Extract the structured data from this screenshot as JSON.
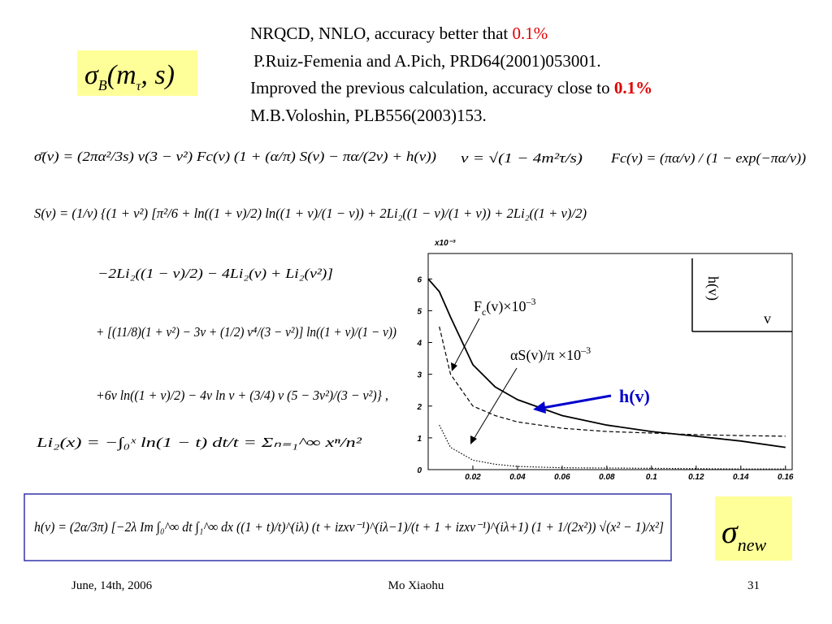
{
  "header": {
    "sigma_box": {
      "symbol": "σ",
      "sub": "B",
      "open": "(m",
      "arg_sub": "τ",
      "close": ", s)"
    },
    "lines": [
      {
        "text": "NRQCD, NNLO, accuracy better that ",
        "highlight": "0.1%"
      },
      {
        "text": "P.Ruiz-Femenia and A.Pich, PRD64(2001)053001."
      },
      {
        "text": "Improved the previous calculation, accuracy close to ",
        "highlight": "0.1%"
      },
      {
        "text": "M.B.Voloshin, PLB556(2003)153."
      }
    ]
  },
  "formulas": [
    "σ̄(v) = (2πα²/3s) v(3 − v²) Fc(v) (1 + (α/π) S(v) − πα/(2v) + h(v))",
    "v = √(1 − 4m²τ/s)",
    "Fc(v) = (πα/v) / (1 − exp(−πα/v))",
    "S(v) = (1/v) {(1 + v²) [π²/6 + ln((1 + v)/2) ln((1 + v)/(1 − v)) + 2Li₂((1 − v)/(1 + v)) + 2Li₂((1 + v)/2)",
    "−2Li₂((1 − v)/2) − 4Li₂(v) + Li₂(v²)]",
    "+ [(11/8)(1 + v²) − 3v + (1/2) v⁴/(3 − v²)] ln((1 + v)/(1 − v))",
    "+6v ln((1 + v)/2) − 4v ln v + (3/4) v (5 − 3v²)/(3 − v²)} ,",
    "Li₂(x) = −∫₀ˣ ln(1 − t) dt/t = Σₙ₌₁^∞ xⁿ/n²",
    "h(v) = (2α/3π) [−2λ Im ∫₀^∞ dt ∫₁^∞ dx ((1 + t)/t)^(iλ) (t + izxv⁻¹)^(iλ−1)/(t + 1 + izxv⁻¹)^(iλ+1) (1 + 1/(2x²)) √(x² − 1)/x²]"
  ],
  "chart_data": {
    "type": "line",
    "y_multiplier": "x10⁻³",
    "x": [
      0,
      0.005,
      0.01,
      0.02,
      0.03,
      0.04,
      0.06,
      0.08,
      0.1,
      0.12,
      0.14,
      0.16
    ],
    "series": [
      {
        "color": "#000000",
        "style": "solid",
        "values": [
          6.0,
          5.6,
          4.8,
          3.3,
          2.6,
          2.2,
          1.7,
          1.4,
          1.2,
          1.05,
          0.9,
          0.7
        ]
      },
      {
        "color": "#000000",
        "style": "dashed",
        "values": [
          null,
          4.5,
          3.0,
          2.0,
          1.7,
          1.5,
          1.3,
          1.2,
          1.15,
          1.1,
          1.07,
          1.05
        ]
      },
      {
        "color": "#000000",
        "style": "dotted",
        "values": [
          null,
          1.4,
          0.7,
          0.3,
          0.17,
          0.1,
          0.06,
          0.05,
          0.04,
          0.03,
          0.02,
          0.02
        ]
      }
    ],
    "xlim": [
      0,
      0.163
    ],
    "ylim": [
      0,
      6.8
    ],
    "xticks": [
      0.02,
      0.04,
      0.06,
      0.08,
      0.1,
      0.12,
      0.14,
      0.16
    ],
    "yticks": [
      0,
      1,
      2,
      3,
      4,
      5,
      6
    ],
    "annotations": {
      "fc": {
        "main": "F",
        "sub": "c",
        "rest": "(v)×10",
        "sup": "–3"
      },
      "as": {
        "main": "αS(v)/π ×10",
        "sup": "–3"
      },
      "h": "h(v)"
    },
    "inset": {
      "y_label": "h(v)",
      "x_label": "v"
    }
  },
  "sigma_new": {
    "symbol": "σ",
    "sub": "new"
  },
  "footer": {
    "date": "June, 14th, 2006",
    "author": "Mo Xiaohu",
    "page": "31"
  }
}
